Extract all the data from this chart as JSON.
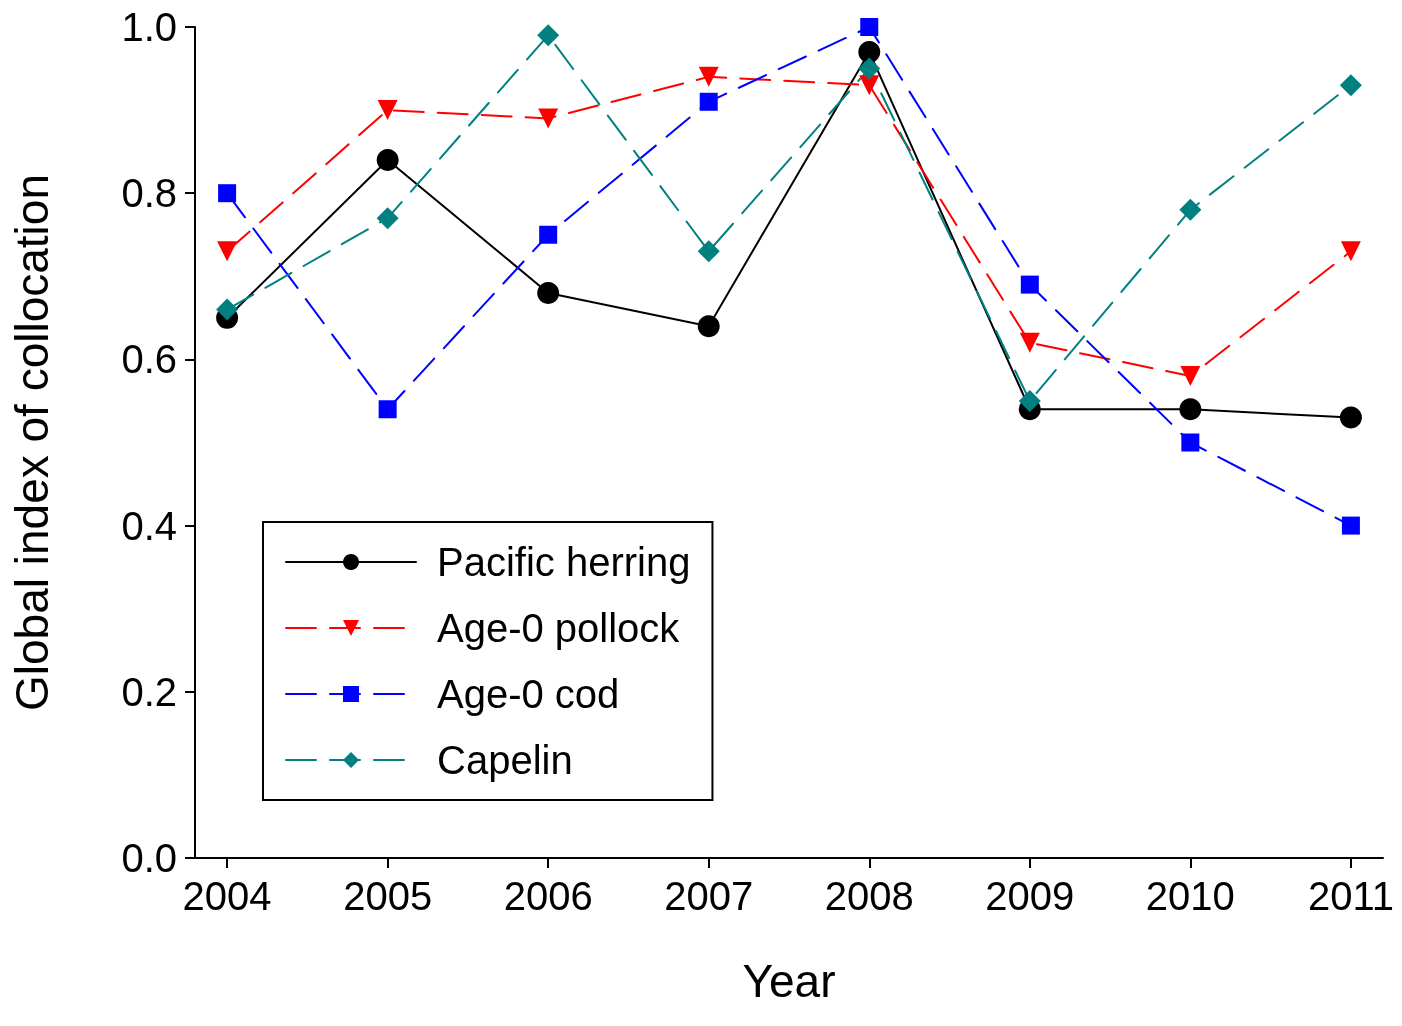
{
  "chart_data": {
    "type": "line",
    "xlabel": "Year",
    "ylabel": "Global index of collocation",
    "x": [
      2004,
      2005,
      2006,
      2007,
      2008,
      2009,
      2010,
      2011
    ],
    "xlim": [
      2003.8,
      2011.2
    ],
    "xticks": [
      2004,
      2005,
      2006,
      2007,
      2008,
      2009,
      2010,
      2011
    ],
    "ylim": [
      0,
      1
    ],
    "yticks": [
      {
        "value": 0,
        "label": "0.0"
      },
      {
        "value": 0.2,
        "label": "0.2"
      },
      {
        "value": 0.4,
        "label": "0.4"
      },
      {
        "value": 0.6,
        "label": "0.6"
      },
      {
        "value": 0.8,
        "label": "0.8"
      },
      {
        "value": 1,
        "label": "1.0"
      }
    ],
    "grid": false,
    "legend": "bottom left",
    "series": [
      {
        "name": "Pacific herring",
        "color": "#000000",
        "marker": "circle",
        "line_style": "solid",
        "values": [
          0.65,
          0.84,
          0.68,
          0.64,
          0.97,
          0.54,
          0.54,
          0.53
        ]
      },
      {
        "name": "Age-0 pollock",
        "color": "#ff0000",
        "marker": "triangle",
        "line_style": "dashed",
        "values": [
          0.73,
          0.9,
          0.89,
          0.94,
          0.93,
          0.62,
          0.58,
          0.73
        ]
      },
      {
        "name": "Age-0 cod",
        "color": "#0000ff",
        "marker": "square",
        "line_style": "dashed",
        "values": [
          0.8,
          0.54,
          0.75,
          0.91,
          1.0,
          0.69,
          0.5,
          0.4
        ]
      },
      {
        "name": "Capelin",
        "color": "#008080",
        "marker": "diamond",
        "line_style": "dashed",
        "values": [
          0.66,
          0.77,
          0.99,
          0.73,
          0.95,
          0.55,
          0.78,
          0.93
        ]
      }
    ]
  }
}
